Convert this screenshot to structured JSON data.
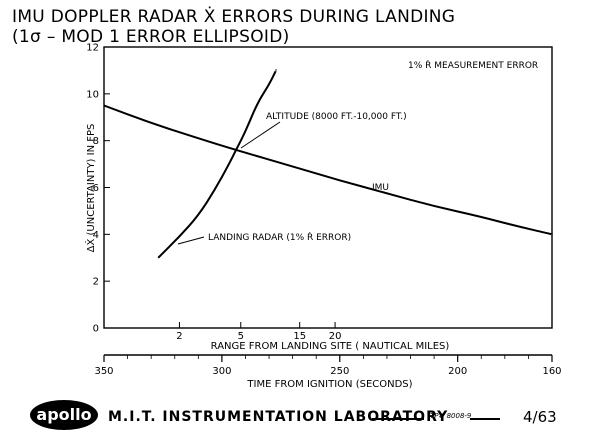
{
  "title_line1": "IMU DOPPLER RADAR Ẋ ERRORS DURING LANDING",
  "title_line2": "(1σ – MOD 1 ERROR ELLIPSOID)",
  "chart_data": {
    "type": "line",
    "ylabel": "ΔẊ (UNCERTAINTY) IN FPS",
    "xlabel_range": "RANGE FROM LANDING SITE ( NAUTICAL MILES)",
    "xlabel_time": "TIME FROM IGNITION (SECONDS)",
    "ylim": [
      0,
      12
    ],
    "yticks": [
      "0",
      "2",
      "4",
      "6",
      "8",
      "10",
      "12"
    ],
    "time_lim": [
      350,
      160
    ],
    "time_ticks": [
      "350",
      "300",
      "250",
      "200",
      "160"
    ],
    "range_ticks": [
      {
        "label": "2",
        "time": 318
      },
      {
        "label": "5",
        "time": 292
      },
      {
        "label": "15",
        "time": 267
      },
      {
        "label": "20",
        "time": 252
      }
    ],
    "series": [
      {
        "name": "IMU",
        "x": [
          350,
          330,
          310,
          294,
          270,
          250,
          230,
          210,
          190,
          175,
          160
        ],
        "y": [
          9.5,
          8.75,
          8.1,
          7.6,
          6.9,
          6.3,
          5.75,
          5.2,
          4.75,
          4.35,
          4.0
        ]
      },
      {
        "name": "LANDING RADAR (1% Ṙ ERROR)",
        "x": [
          327,
          318,
          310,
          303,
          297,
          294,
          290,
          285,
          280,
          277
        ],
        "y": [
          3.0,
          3.9,
          4.8,
          5.9,
          7.0,
          7.6,
          8.4,
          9.6,
          10.4,
          11.0
        ]
      }
    ],
    "annotations": {
      "measurement": "1% Ṙ MEASUREMENT ERROR",
      "altitude": "ALTITUDE (8000 FT.-10,000 FT.)",
      "imu_label": "IMU",
      "radar_label": "LANDING RADAR (1% Ṙ ERROR)"
    }
  },
  "footer": {
    "logo": "apollo",
    "lab": "M.I.T. INSTRUMENTATION LABORATORY",
    "figno": "TP# 8008-9",
    "date": "4/63"
  }
}
